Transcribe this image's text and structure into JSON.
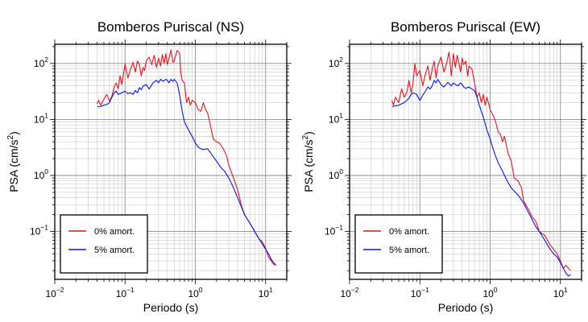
{
  "figure": {
    "background": "#ffffff",
    "frame_color": "#000000",
    "grid_major_color": "#8c8c8c",
    "grid_minor_color": "#c8c8c8"
  },
  "chart_data": [
    {
      "type": "line",
      "title": "Bomberos Puriscal (NS)",
      "xlabel": "Periodo (s)",
      "ylabel_main": "PSA (cm/s",
      "ylabel_sup": "2",
      "ylabel_end": ")",
      "x_scale": "log",
      "y_scale": "log",
      "xlim": [
        0.01,
        20
      ],
      "ylim": [
        0.014,
        220
      ],
      "x_ticks": [
        {
          "value": 0.01,
          "base": "10",
          "exp": "−2"
        },
        {
          "value": 0.1,
          "base": "10",
          "exp": "−1"
        },
        {
          "value": 1,
          "base": "10",
          "exp": "0"
        },
        {
          "value": 10,
          "base": "10",
          "exp": "1"
        }
      ],
      "y_ticks": [
        {
          "value": 0.1,
          "base": "10",
          "exp": "−1"
        },
        {
          "value": 1,
          "base": "10",
          "exp": "0"
        },
        {
          "value": 10,
          "base": "10",
          "exp": "1"
        },
        {
          "value": 100,
          "base": "10",
          "exp": "2"
        }
      ],
      "grid": true,
      "legend_position": "bottom-left",
      "series": [
        {
          "name": "0% amort.",
          "color": "#e8121e",
          "x": [
            0.04,
            0.042,
            0.045,
            0.05,
            0.055,
            0.06,
            0.065,
            0.07,
            0.075,
            0.08,
            0.085,
            0.09,
            0.095,
            0.1,
            0.11,
            0.12,
            0.13,
            0.14,
            0.15,
            0.16,
            0.17,
            0.18,
            0.19,
            0.2,
            0.22,
            0.24,
            0.26,
            0.28,
            0.3,
            0.32,
            0.34,
            0.36,
            0.38,
            0.4,
            0.42,
            0.45,
            0.48,
            0.5,
            0.55,
            0.6,
            0.62,
            0.65,
            0.7,
            0.75,
            0.8,
            0.85,
            0.9,
            1.0,
            1.1,
            1.2,
            1.3,
            1.4,
            1.5,
            1.6,
            1.8,
            2.0,
            2.2,
            2.5,
            2.8,
            3.0,
            3.5,
            4.0,
            4.5,
            5.0,
            6.0,
            7.0,
            8.0,
            9.0,
            10.0,
            11.0,
            12.0,
            13.0,
            14.0
          ],
          "y": [
            19,
            22,
            18,
            23,
            28,
            21,
            26,
            38,
            45,
            35,
            60,
            42,
            65,
            98,
            55,
            80,
            105,
            70,
            110,
            95,
            60,
            85,
            75,
            110,
            130,
            95,
            140,
            85,
            125,
            90,
            145,
            100,
            150,
            95,
            120,
            175,
            105,
            110,
            170,
            150,
            70,
            50,
            45,
            20,
            25,
            18,
            22,
            20,
            15,
            14,
            20,
            15,
            13,
            9,
            4.5,
            4.0,
            3.8,
            3.0,
            2.2,
            1.5,
            0.9,
            0.55,
            0.3,
            0.2,
            0.14,
            0.1,
            0.075,
            0.065,
            0.05,
            0.035,
            0.03,
            0.026,
            0.025
          ]
        },
        {
          "name": "5% amort.",
          "color": "#0b15e0",
          "x": [
            0.04,
            0.045,
            0.05,
            0.055,
            0.06,
            0.065,
            0.07,
            0.075,
            0.08,
            0.09,
            0.1,
            0.11,
            0.12,
            0.13,
            0.14,
            0.15,
            0.16,
            0.17,
            0.18,
            0.2,
            0.22,
            0.25,
            0.28,
            0.3,
            0.32,
            0.35,
            0.38,
            0.4,
            0.42,
            0.45,
            0.48,
            0.5,
            0.55,
            0.6,
            0.65,
            0.7,
            0.8,
            0.9,
            1.0,
            1.1,
            1.2,
            1.3,
            1.5,
            1.7,
            2.0,
            2.3,
            2.6,
            3.0,
            3.5,
            4.0,
            4.5,
            5.0,
            6.0,
            7.0,
            8.0,
            9.0,
            10.0,
            11.0,
            12.0,
            13.0,
            14.0
          ],
          "y": [
            17,
            17,
            18,
            18.5,
            20,
            25,
            30,
            32,
            28,
            30,
            32,
            29,
            30,
            28,
            33,
            30,
            37,
            34,
            39,
            42,
            35,
            45,
            50,
            45,
            52,
            48,
            52,
            50,
            45,
            52,
            48,
            52,
            45,
            27,
            14,
            9,
            6.5,
            5.0,
            3.8,
            3.2,
            3.0,
            2.9,
            3.0,
            2.4,
            1.8,
            1.4,
            1.2,
            0.9,
            0.6,
            0.4,
            0.28,
            0.2,
            0.14,
            0.1,
            0.075,
            0.06,
            0.048,
            0.04,
            0.032,
            0.028,
            0.025
          ]
        }
      ]
    },
    {
      "type": "line",
      "title": "Bomberos Puriscal (EW)",
      "xlabel": "Periodo (s)",
      "ylabel_main": "PSA (cm/s",
      "ylabel_sup": "2",
      "ylabel_end": ")",
      "x_scale": "log",
      "y_scale": "log",
      "xlim": [
        0.01,
        20
      ],
      "ylim": [
        0.014,
        220
      ],
      "x_ticks": [
        {
          "value": 0.01,
          "base": "10",
          "exp": "−2"
        },
        {
          "value": 0.1,
          "base": "10",
          "exp": "−1"
        },
        {
          "value": 1,
          "base": "10",
          "exp": "0"
        },
        {
          "value": 10,
          "base": "10",
          "exp": "1"
        }
      ],
      "y_ticks": [
        {
          "value": 0.1,
          "base": "10",
          "exp": "−1"
        },
        {
          "value": 1,
          "base": "10",
          "exp": "0"
        },
        {
          "value": 10,
          "base": "10",
          "exp": "1"
        },
        {
          "value": 100,
          "base": "10",
          "exp": "2"
        }
      ],
      "grid": true,
      "legend_position": "bottom-left",
      "series": [
        {
          "name": "0% amort.",
          "color": "#e8121e",
          "x": [
            0.04,
            0.042,
            0.045,
            0.05,
            0.055,
            0.06,
            0.065,
            0.07,
            0.075,
            0.08,
            0.085,
            0.09,
            0.1,
            0.11,
            0.12,
            0.13,
            0.14,
            0.15,
            0.16,
            0.17,
            0.18,
            0.2,
            0.22,
            0.24,
            0.26,
            0.28,
            0.3,
            0.32,
            0.34,
            0.36,
            0.38,
            0.4,
            0.42,
            0.45,
            0.48,
            0.5,
            0.55,
            0.6,
            0.65,
            0.7,
            0.75,
            0.8,
            0.85,
            0.9,
            1.0,
            1.1,
            1.2,
            1.3,
            1.4,
            1.5,
            1.6,
            1.8,
            2.0,
            2.2,
            2.5,
            2.8,
            3.0,
            3.5,
            4.0,
            4.5,
            5.0,
            6.0,
            7.0,
            8.0,
            9.0,
            10.0,
            11.0,
            12.0,
            13.0,
            14.0
          ],
          "y": [
            22,
            18,
            25,
            20,
            35,
            25,
            30,
            50,
            30,
            45,
            100,
            60,
            75,
            40,
            65,
            90,
            50,
            80,
            110,
            55,
            90,
            130,
            70,
            100,
            160,
            60,
            150,
            85,
            140,
            100,
            70,
            125,
            95,
            110,
            60,
            90,
            80,
            45,
            25,
            30,
            20,
            28,
            18,
            25,
            15,
            12,
            9,
            6.0,
            5.5,
            4.0,
            5.0,
            2.5,
            1.8,
            0.9,
            0.8,
            0.6,
            0.35,
            0.25,
            0.18,
            0.15,
            0.1,
            0.085,
            0.06,
            0.048,
            0.04,
            0.03,
            0.022,
            0.025,
            0.022,
            0.02
          ]
        },
        {
          "name": "5% amort.",
          "color": "#0b15e0",
          "x": [
            0.04,
            0.045,
            0.05,
            0.055,
            0.06,
            0.065,
            0.07,
            0.075,
            0.08,
            0.09,
            0.1,
            0.11,
            0.12,
            0.13,
            0.14,
            0.15,
            0.16,
            0.17,
            0.18,
            0.2,
            0.22,
            0.25,
            0.28,
            0.3,
            0.32,
            0.35,
            0.38,
            0.4,
            0.42,
            0.45,
            0.5,
            0.55,
            0.6,
            0.65,
            0.7,
            0.8,
            0.9,
            1.0,
            1.1,
            1.2,
            1.3,
            1.5,
            1.7,
            2.0,
            2.3,
            2.6,
            3.0,
            3.5,
            4.0,
            4.5,
            5.0,
            6.0,
            7.0,
            8.0,
            9.0,
            10.0,
            11.0,
            12.0,
            13.0,
            14.0
          ],
          "y": [
            17,
            17.5,
            18,
            19,
            20,
            22,
            24,
            28,
            30,
            28,
            22,
            27,
            32,
            38,
            35,
            40,
            50,
            45,
            52,
            42,
            38,
            46,
            40,
            45,
            42,
            40,
            45,
            42,
            38,
            36,
            38,
            35,
            33,
            25,
            18,
            11,
            6.5,
            4.5,
            3.0,
            2.2,
            1.7,
            1.2,
            0.85,
            0.6,
            0.5,
            0.42,
            0.32,
            0.22,
            0.16,
            0.12,
            0.1,
            0.07,
            0.05,
            0.04,
            0.035,
            0.028,
            0.022,
            0.018,
            0.016,
            0.017
          ]
        }
      ]
    }
  ]
}
